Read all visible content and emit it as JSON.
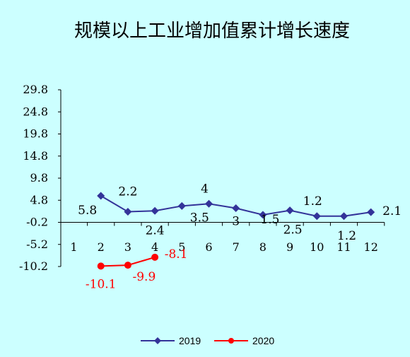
{
  "chart_data": {
    "type": "line",
    "title": "规模以上工业增加值累计增长速度",
    "xlabel": "",
    "ylabel": "",
    "categories": [
      "1",
      "2",
      "3",
      "4",
      "5",
      "6",
      "7",
      "8",
      "9",
      "10",
      "11",
      "12"
    ],
    "yticks": [
      "29.8",
      "24.8",
      "19.8",
      "14.8",
      "9.8",
      "4.8",
      "-0.2",
      "-5.2",
      "-10.2"
    ],
    "ylim": [
      -10.2,
      29.8
    ],
    "grid": false,
    "legend_position": "bottom",
    "series": [
      {
        "name": "2019",
        "color": "#333399",
        "marker": "diamond",
        "x": [
          "2",
          "3",
          "4",
          "5",
          "6",
          "7",
          "8",
          "9",
          "10",
          "11",
          "12"
        ],
        "values": [
          5.8,
          2.2,
          2.4,
          3.5,
          4,
          3,
          1.5,
          2.5,
          1.2,
          1.2,
          2.1
        ],
        "labels": [
          "5.8",
          "2.2",
          "2.4",
          "3.5",
          "4",
          "3",
          "1.5",
          "2.5",
          "1.2",
          "1.2",
          "2.1"
        ]
      },
      {
        "name": "2020",
        "color": "#ff0000",
        "marker": "circle",
        "x": [
          "2",
          "3",
          "4"
        ],
        "values": [
          -10.1,
          -9.9,
          -8.1
        ],
        "labels": [
          "-10.1",
          "-9.9",
          "-8.1"
        ]
      }
    ]
  }
}
